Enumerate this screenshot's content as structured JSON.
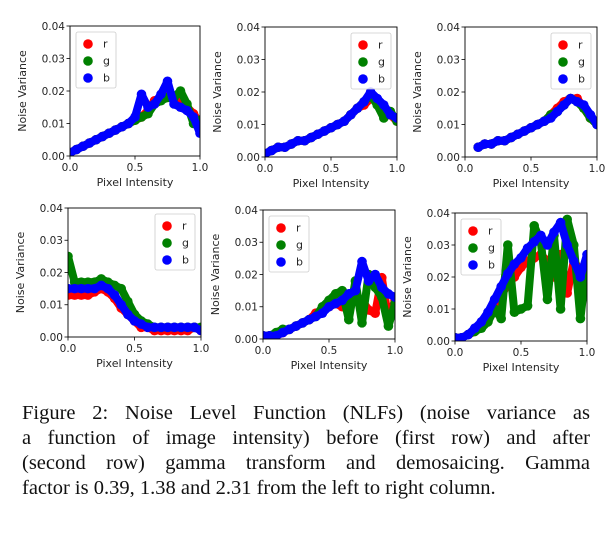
{
  "chart_data": [
    {
      "type": "scatter",
      "panel": "row1-col1",
      "xlabel": "Pixel Intensity",
      "ylabel": "Noise Variance",
      "xlim": [
        0,
        1
      ],
      "ylim": [
        0,
        0.04
      ],
      "xticks": [
        "0.0",
        "0.5",
        "1.0"
      ],
      "yticks": [
        "0.00",
        "0.01",
        "0.02",
        "0.03",
        "0.04"
      ],
      "legend": "top-left",
      "x": [
        0,
        0.05,
        0.1,
        0.15,
        0.2,
        0.25,
        0.3,
        0.35,
        0.4,
        0.45,
        0.5,
        0.55,
        0.6,
        0.65,
        0.7,
        0.75,
        0.8,
        0.85,
        0.9,
        0.95,
        1.0
      ],
      "series": [
        {
          "name": "r",
          "color": "#ff0000",
          "y": [
            0.001,
            0.002,
            0.003,
            0.004,
            0.005,
            0.006,
            0.007,
            0.008,
            0.009,
            0.01,
            0.011,
            0.012,
            0.014,
            0.017,
            0.018,
            0.019,
            0.018,
            0.016,
            0.015,
            0.013,
            0.01
          ]
        },
        {
          "name": "g",
          "color": "#008000",
          "y": [
            0.001,
            0.002,
            0.003,
            0.004,
            0.005,
            0.006,
            0.007,
            0.008,
            0.009,
            0.01,
            0.011,
            0.012,
            0.013,
            0.016,
            0.017,
            0.018,
            0.018,
            0.02,
            0.016,
            0.01,
            0.011
          ]
        },
        {
          "name": "b",
          "color": "#0000ff",
          "y": [
            0.001,
            0.002,
            0.003,
            0.004,
            0.005,
            0.006,
            0.007,
            0.008,
            0.009,
            0.01,
            0.012,
            0.019,
            0.015,
            0.016,
            0.019,
            0.023,
            0.016,
            0.015,
            0.014,
            0.012,
            0.007
          ]
        }
      ]
    },
    {
      "type": "scatter",
      "panel": "row1-col2",
      "xlabel": "Pixel Intensity",
      "ylabel": "Noise Variance",
      "xlim": [
        0,
        1
      ],
      "ylim": [
        0,
        0.04
      ],
      "xticks": [
        "0.0",
        "0.5",
        "1.0"
      ],
      "yticks": [
        "0.00",
        "0.01",
        "0.02",
        "0.03",
        "0.04"
      ],
      "legend": "top-right",
      "x": [
        0,
        0.05,
        0.1,
        0.15,
        0.2,
        0.25,
        0.3,
        0.35,
        0.4,
        0.45,
        0.5,
        0.55,
        0.6,
        0.65,
        0.7,
        0.75,
        0.8,
        0.85,
        0.9,
        0.95,
        1.0
      ],
      "series": [
        {
          "name": "r",
          "color": "#ff0000",
          "y": [
            0.001,
            0.002,
            0.003,
            0.003,
            0.004,
            0.005,
            0.005,
            0.006,
            0.007,
            0.008,
            0.009,
            0.01,
            0.011,
            0.013,
            0.015,
            0.016,
            0.018,
            0.017,
            0.015,
            0.013,
            0.011
          ]
        },
        {
          "name": "g",
          "color": "#008000",
          "y": [
            0.001,
            0.002,
            0.003,
            0.003,
            0.004,
            0.005,
            0.005,
            0.006,
            0.007,
            0.008,
            0.009,
            0.01,
            0.011,
            0.013,
            0.015,
            0.017,
            0.019,
            0.016,
            0.012,
            0.014,
            0.011
          ]
        },
        {
          "name": "b",
          "color": "#0000ff",
          "y": [
            0.001,
            0.002,
            0.003,
            0.003,
            0.004,
            0.005,
            0.005,
            0.006,
            0.007,
            0.008,
            0.009,
            0.01,
            0.011,
            0.013,
            0.015,
            0.017,
            0.02,
            0.018,
            0.016,
            0.013,
            0.012
          ]
        }
      ]
    },
    {
      "type": "scatter",
      "panel": "row1-col3",
      "xlabel": "Pixel Intensity",
      "ylabel": "Noise Variance",
      "xlim": [
        0,
        1
      ],
      "ylim": [
        0,
        0.04
      ],
      "xticks": [
        "0.0",
        "0.5",
        "1.0"
      ],
      "yticks": [
        "0.00",
        "0.01",
        "0.02",
        "0.03",
        "0.04"
      ],
      "legend": "top-right",
      "x": [
        0.1,
        0.15,
        0.2,
        0.25,
        0.3,
        0.35,
        0.4,
        0.45,
        0.5,
        0.55,
        0.6,
        0.65,
        0.7,
        0.75,
        0.8,
        0.85,
        0.9,
        0.95,
        1.0
      ],
      "series": [
        {
          "name": "r",
          "color": "#ff0000",
          "y": [
            0.003,
            0.004,
            0.004,
            0.005,
            0.005,
            0.006,
            0.007,
            0.008,
            0.009,
            0.01,
            0.011,
            0.013,
            0.015,
            0.017,
            0.018,
            0.018,
            0.015,
            0.012,
            0.01
          ]
        },
        {
          "name": "g",
          "color": "#008000",
          "y": [
            0.003,
            0.004,
            0.004,
            0.005,
            0.005,
            0.006,
            0.007,
            0.008,
            0.009,
            0.01,
            0.011,
            0.013,
            0.014,
            0.016,
            0.018,
            0.017,
            0.015,
            0.012,
            0.01
          ]
        },
        {
          "name": "b",
          "color": "#0000ff",
          "y": [
            0.003,
            0.004,
            0.004,
            0.005,
            0.005,
            0.006,
            0.007,
            0.008,
            0.009,
            0.01,
            0.011,
            0.012,
            0.014,
            0.016,
            0.018,
            0.017,
            0.016,
            0.013,
            0.01
          ]
        }
      ]
    },
    {
      "type": "scatter",
      "panel": "row2-col1",
      "xlabel": "Pixel Intensity",
      "ylabel": "Noise Variance",
      "xlim": [
        0,
        1
      ],
      "ylim": [
        0,
        0.04
      ],
      "xticks": [
        "0.0",
        "0.5",
        "1.0"
      ],
      "yticks": [
        "0.00",
        "0.01",
        "0.02",
        "0.03",
        "0.04"
      ],
      "legend": "top-right",
      "x": [
        0,
        0.05,
        0.1,
        0.15,
        0.2,
        0.25,
        0.3,
        0.35,
        0.4,
        0.45,
        0.5,
        0.55,
        0.6,
        0.65,
        0.7,
        0.75,
        0.8,
        0.85,
        0.9,
        0.95,
        1.0
      ],
      "series": [
        {
          "name": "r",
          "color": "#ff0000",
          "y": [
            0.013,
            0.013,
            0.013,
            0.013,
            0.014,
            0.015,
            0.014,
            0.012,
            0.009,
            0.007,
            0.005,
            0.003,
            0.003,
            0.002,
            0.002,
            0.002,
            0.002,
            0.002,
            0.002,
            0.003,
            0.002
          ]
        },
        {
          "name": "g",
          "color": "#008000",
          "y": [
            0.025,
            0.017,
            0.017,
            0.017,
            0.017,
            0.018,
            0.017,
            0.016,
            0.015,
            0.011,
            0.007,
            0.005,
            0.004,
            0.003,
            0.003,
            0.003,
            0.003,
            0.003,
            0.003,
            0.003,
            0.003
          ]
        },
        {
          "name": "b",
          "color": "#0000ff",
          "y": [
            0.015,
            0.015,
            0.015,
            0.015,
            0.015,
            0.016,
            0.015,
            0.013,
            0.01,
            0.007,
            0.005,
            0.004,
            0.003,
            0.003,
            0.003,
            0.003,
            0.003,
            0.003,
            0.003,
            0.003,
            0.002
          ]
        }
      ]
    },
    {
      "type": "scatter",
      "panel": "row2-col2",
      "xlabel": "Pixel Intensity",
      "ylabel": "Noise Variance",
      "xlim": [
        0,
        1
      ],
      "ylim": [
        0,
        0.04
      ],
      "xticks": [
        "0.0",
        "0.5",
        "1.0"
      ],
      "yticks": [
        "0.00",
        "0.01",
        "0.02",
        "0.03",
        "0.04"
      ],
      "legend": "top-left",
      "x": [
        0,
        0.05,
        0.1,
        0.15,
        0.2,
        0.25,
        0.3,
        0.35,
        0.4,
        0.45,
        0.5,
        0.55,
        0.6,
        0.65,
        0.7,
        0.75,
        0.8,
        0.85,
        0.9,
        0.95,
        1.0
      ],
      "series": [
        {
          "name": "r",
          "color": "#ff0000",
          "y": [
            0.001,
            0.001,
            0.001,
            0.002,
            0.003,
            0.004,
            0.005,
            0.006,
            0.008,
            0.009,
            0.01,
            0.011,
            0.01,
            0.012,
            0.013,
            0.012,
            0.009,
            0.008,
            0.019,
            0.006,
            0.012
          ]
        },
        {
          "name": "g",
          "color": "#008000",
          "y": [
            0.001,
            0.001,
            0.002,
            0.003,
            0.003,
            0.004,
            0.005,
            0.006,
            0.007,
            0.01,
            0.012,
            0.014,
            0.015,
            0.006,
            0.018,
            0.005,
            0.02,
            0.016,
            0.013,
            0.004,
            0.011
          ]
        },
        {
          "name": "b",
          "color": "#0000ff",
          "y": [
            0.001,
            0.001,
            0.001,
            0.002,
            0.003,
            0.004,
            0.005,
            0.006,
            0.007,
            0.008,
            0.01,
            0.011,
            0.012,
            0.014,
            0.015,
            0.024,
            0.018,
            0.02,
            0.016,
            0.014,
            0.013
          ]
        }
      ]
    },
    {
      "type": "scatter",
      "panel": "row2-col3",
      "xlabel": "Pixel Intensity",
      "ylabel": "Noise Variance",
      "xlim": [
        0,
        1
      ],
      "ylim": [
        0,
        0.04
      ],
      "xticks": [
        "0.0",
        "0.5",
        "1.0"
      ],
      "yticks": [
        "0.00",
        "0.01",
        "0.02",
        "0.03",
        "0.04"
      ],
      "legend": "top-left",
      "x": [
        0,
        0.05,
        0.1,
        0.15,
        0.2,
        0.25,
        0.3,
        0.35,
        0.4,
        0.45,
        0.5,
        0.55,
        0.6,
        0.65,
        0.7,
        0.75,
        0.8,
        0.85,
        0.9,
        0.95,
        1.0
      ],
      "series": [
        {
          "name": "r",
          "color": "#ff0000",
          "y": [
            0.001,
            0.001,
            0.002,
            0.003,
            0.005,
            0.008,
            0.011,
            0.014,
            0.018,
            0.02,
            0.023,
            0.025,
            0.026,
            0.027,
            0.025,
            0.02,
            0.027,
            0.015,
            0.025,
            0.022,
            0.02
          ]
        },
        {
          "name": "g",
          "color": "#008000",
          "y": [
            0.001,
            0.001,
            0.002,
            0.003,
            0.004,
            0.006,
            0.01,
            0.007,
            0.03,
            0.009,
            0.01,
            0.011,
            0.036,
            0.031,
            0.013,
            0.033,
            0.01,
            0.038,
            0.03,
            0.007,
            0.025
          ]
        },
        {
          "name": "b",
          "color": "#0000ff",
          "y": [
            0.001,
            0.001,
            0.002,
            0.004,
            0.006,
            0.009,
            0.013,
            0.017,
            0.021,
            0.024,
            0.026,
            0.029,
            0.031,
            0.033,
            0.03,
            0.034,
            0.037,
            0.03,
            0.025,
            0.02,
            0.027
          ]
        }
      ]
    }
  ],
  "caption": {
    "lines": [
      "Figure 2: Noise Level Function (NLFs) (noise variance as",
      "a function of image intensity) before (first row) and after",
      "(second row) gamma transform and demosaicing. Gamma",
      "factor is 0.39, 1.38 and 2.31 from the left to right column."
    ]
  }
}
